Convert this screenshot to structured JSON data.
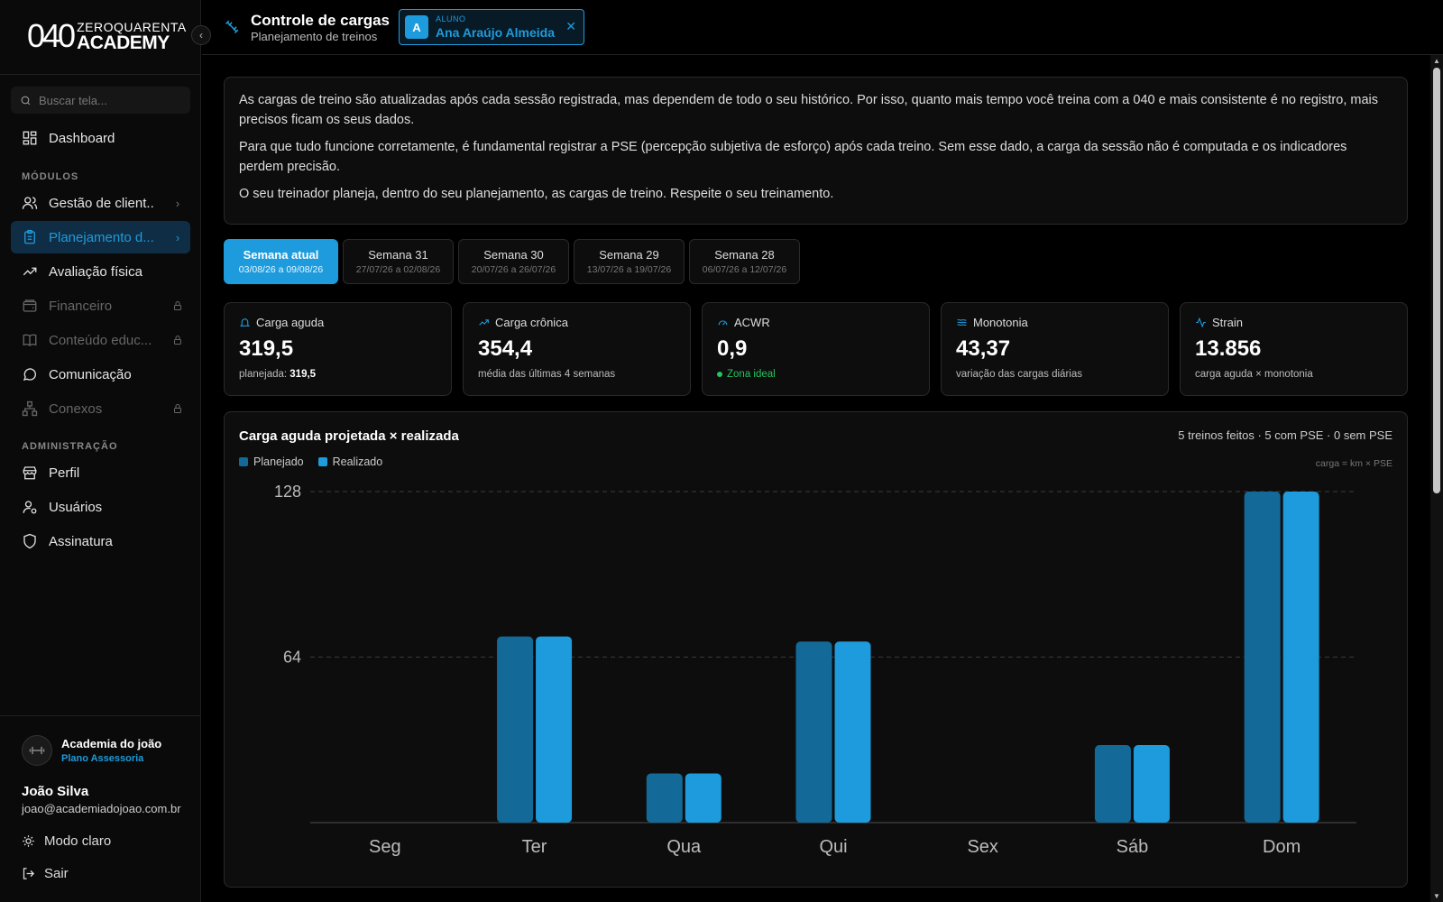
{
  "sidebar": {
    "logo_mark": "040",
    "logo_line1": "ZEROQUARENTA",
    "logo_line2": "ACADEMY",
    "search_placeholder": "Buscar tela...",
    "dashboard": "Dashboard",
    "modules_label": "MÓDULOS",
    "items": [
      {
        "label": "Gestão de client...",
        "icon": "users-icon"
      },
      {
        "label": "Planejamento d...",
        "icon": "clipboard-icon"
      },
      {
        "label": "Avaliação física",
        "icon": "trending-up-icon"
      },
      {
        "label": "Financeiro",
        "icon": "wallet-icon"
      },
      {
        "label": "Conteúdo educ...",
        "icon": "book-icon"
      },
      {
        "label": "Comunicação",
        "icon": "chat-icon"
      },
      {
        "label": "Conexos",
        "icon": "network-icon"
      }
    ],
    "admin_label": "ADMINISTRAÇÃO",
    "admin_items": [
      {
        "label": "Perfil",
        "icon": "store-icon"
      },
      {
        "label": "Usuários",
        "icon": "user-gear-icon"
      },
      {
        "label": "Assinatura",
        "icon": "shield-icon"
      }
    ],
    "org_name": "Academia do joão",
    "org_plan": "Plano Assessoria",
    "user_name": "João Silva",
    "user_email": "joao@academiadojoao.com.br",
    "theme_toggle": "Modo claro",
    "logout": "Sair"
  },
  "header": {
    "title": "Controle de cargas",
    "subtitle": "Planejamento de treinos",
    "student_role": "ALUNO",
    "student_initial": "A",
    "student_name": "Ana Araújo Almeida"
  },
  "info": {
    "p1": "As cargas de treino são atualizadas após cada sessão registrada, mas dependem de todo o seu histórico. Por isso, quanto mais tempo você treina com a 040 e mais consistente é no registro, mais precisos ficam os seus dados.",
    "p2": "Para que tudo funcione corretamente, é fundamental registrar a PSE (percepção subjetiva de esforço) após cada treino. Sem esse dado, a carga da sessão não é computada e os indicadores perdem precisão.",
    "p3": "O seu treinador planeja, dentro do seu planejamento, as cargas de treino. Respeite o seu treinamento."
  },
  "weeks": [
    {
      "label": "Semana atual",
      "range": "03/08/26 a 09/08/26"
    },
    {
      "label": "Semana 31",
      "range": "27/07/26 a 02/08/26"
    },
    {
      "label": "Semana 30",
      "range": "20/07/26 a 26/07/26"
    },
    {
      "label": "Semana 29",
      "range": "13/07/26 a 19/07/26"
    },
    {
      "label": "Semana 28",
      "range": "06/07/26 a 12/07/26"
    }
  ],
  "kpis": [
    {
      "title": "Carga aguda",
      "value": "319,5",
      "sub_prefix": "planejada:",
      "sub_value": "319,5",
      "icon": "bell-icon"
    },
    {
      "title": "Carga crônica",
      "value": "354,4",
      "sub": "média das últimas 4 semanas",
      "icon": "trending-up-icon"
    },
    {
      "title": "ACWR",
      "value": "0,9",
      "sub": "Zona ideal",
      "icon": "gauge-icon"
    },
    {
      "title": "Monotonia",
      "value": "43,37",
      "sub": "variação das cargas diárias",
      "icon": "waves-icon"
    },
    {
      "title": "Strain",
      "value": "13.856",
      "sub": "carga aguda × monotonia",
      "icon": "activity-icon"
    }
  ],
  "chart_card": {
    "title": "Carga aguda projetada × realizada",
    "stats": "5 treinos feitos · 5 com PSE · 0 sem PSE",
    "formula": "carga = km × PSE"
  },
  "colors": {
    "accent": "#1e9bdc",
    "planned": "#136a99",
    "realized": "#1e9bdc",
    "ok": "#22c55e"
  },
  "chart_data": {
    "type": "bar",
    "categories": [
      "Seg",
      "Ter",
      "Qua",
      "Qui",
      "Sex",
      "Sáb",
      "Dom"
    ],
    "series": [
      {
        "name": "Planejado",
        "values": [
          0,
          72,
          19,
          70,
          0,
          30,
          128
        ]
      },
      {
        "name": "Realizado",
        "values": [
          0,
          72,
          19,
          70,
          0,
          30,
          128
        ]
      }
    ],
    "yticks": [
      64,
      128
    ],
    "ylim": [
      0,
      128
    ],
    "grid": true,
    "legend": "top-left"
  }
}
